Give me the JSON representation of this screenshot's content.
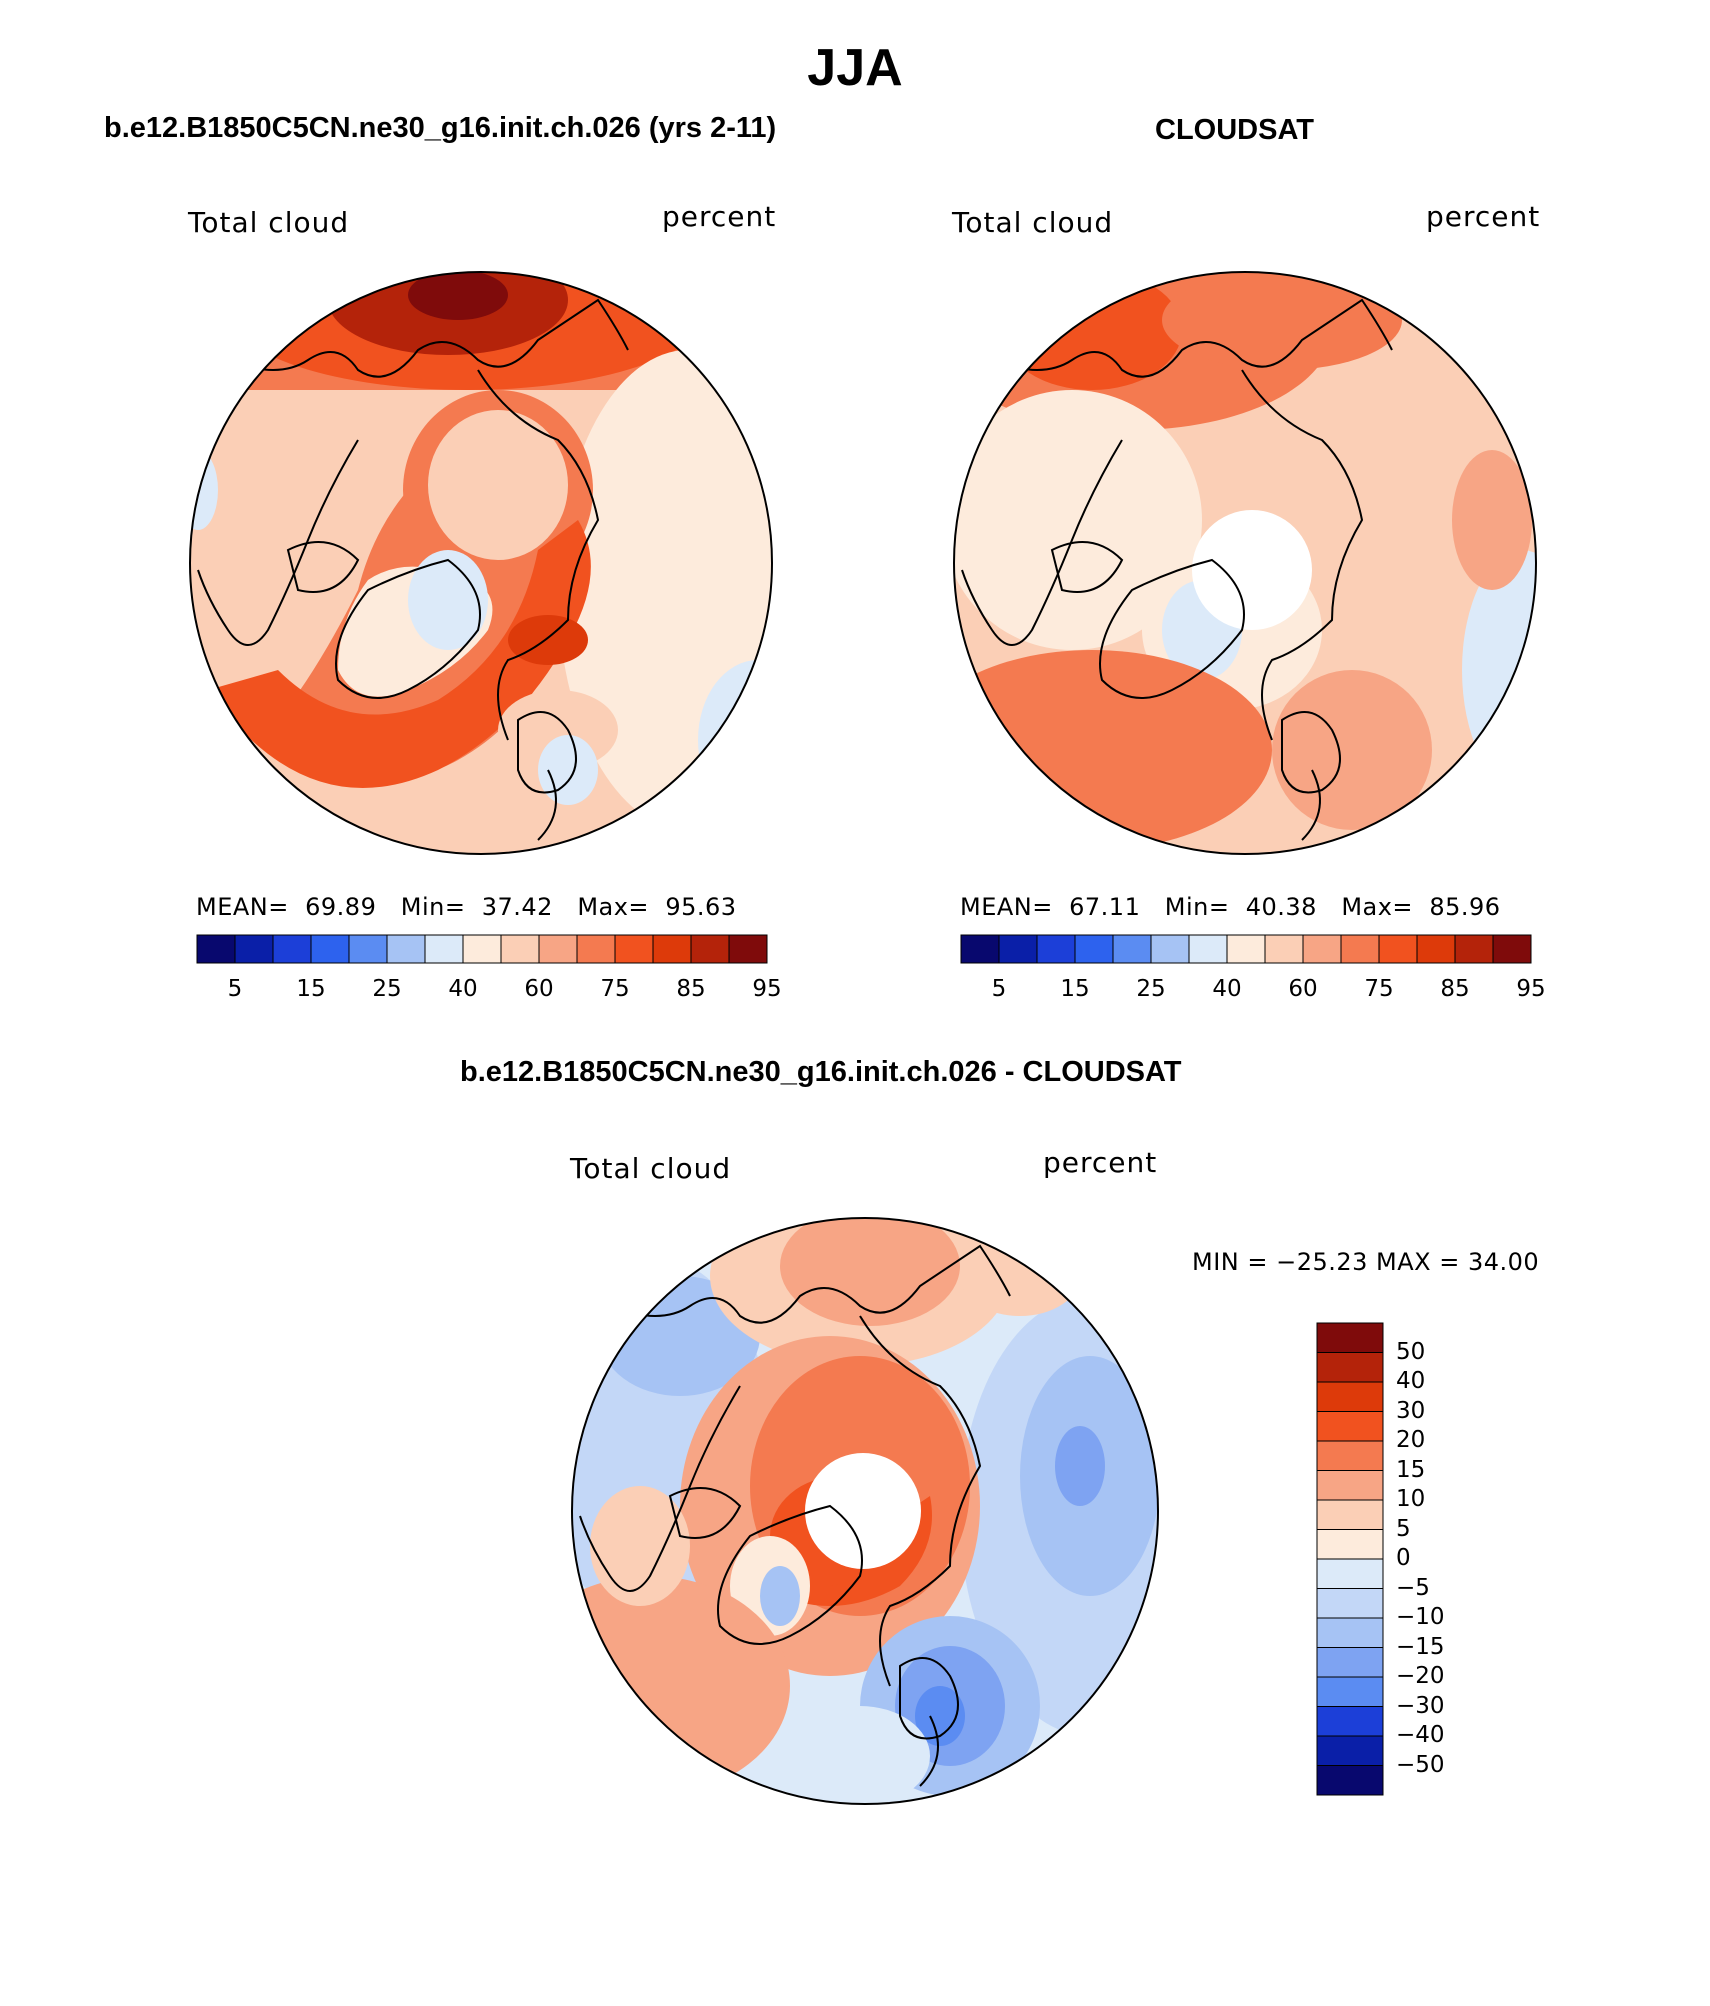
{
  "figure": {
    "season": "JJA",
    "panels": [
      {
        "title": "b.e12.B1850C5CN.ne30_g16.init.ch.026 (yrs 2-11)",
        "variable": "Total cloud",
        "units": "percent",
        "stats": {
          "mean_label": "MEAN=",
          "mean": "69.89",
          "min_label": "Min=",
          "min": "37.42",
          "max_label": "Max=",
          "max": "95.63"
        }
      },
      {
        "title": "CLOUDSAT",
        "variable": "Total cloud",
        "units": "percent",
        "stats": {
          "mean_label": "MEAN=",
          "mean": "67.11",
          "min_label": "Min=",
          "min": "40.38",
          "max_label": "Max=",
          "max": "85.96"
        }
      },
      {
        "title": "b.e12.B1850C5CN.ne30_g16.init.ch.026 - CLOUDSAT",
        "variable": "Total cloud",
        "units": "percent",
        "stats_text": "MIN = −25.23 MAX =   34.00"
      }
    ],
    "abs_colorbar": {
      "colors": [
        "#08086e",
        "#0a1fa8",
        "#1c3fd8",
        "#2d62ee",
        "#5b8cf2",
        "#a6c3f4",
        "#dceaf9",
        "#fdebdc",
        "#fbcfb6",
        "#f7a585",
        "#f47a50",
        "#f1521f",
        "#dd3a0a",
        "#b4230a",
        "#7f0b0b"
      ],
      "tick_labels": [
        "5",
        "15",
        "25",
        "40",
        "60",
        "75",
        "85",
        "95"
      ]
    },
    "diff_colorbar": {
      "colors": [
        "#7f0b0b",
        "#b4230a",
        "#dd3a0a",
        "#f1521f",
        "#f47a50",
        "#f7a585",
        "#fbcfb6",
        "#fdebdc",
        "#dceaf9",
        "#c3d7f7",
        "#a6c3f4",
        "#7ea3f2",
        "#5b8cf2",
        "#1c3fd8",
        "#0a1fa8",
        "#08086e"
      ],
      "labels": [
        "50",
        "40",
        "30",
        "20",
        "15",
        "10",
        "5",
        "0",
        "−5",
        "−10",
        "−15",
        "−20",
        "−30",
        "−40",
        "−50"
      ]
    }
  }
}
